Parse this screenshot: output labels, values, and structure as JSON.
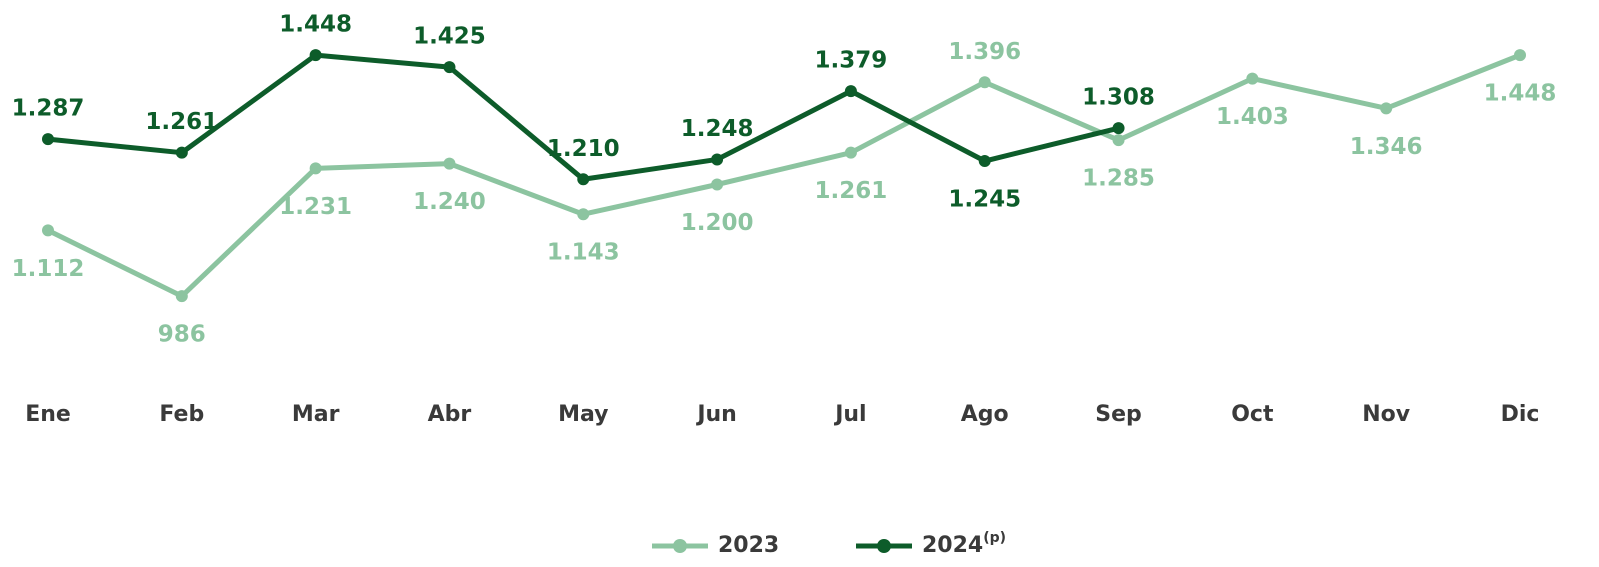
{
  "chart_data": {
    "type": "line",
    "categories": [
      "Ene",
      "Feb",
      "Mar",
      "Abr",
      "May",
      "Jun",
      "Jul",
      "Ago",
      "Sep",
      "Oct",
      "Nov",
      "Dic"
    ],
    "series": [
      {
        "name": "2023",
        "color": "#8cc4a0",
        "values": [
          1112,
          986,
          1231,
          1240,
          1143,
          1200,
          1261,
          1396,
          1285,
          1403,
          1346,
          1448
        ],
        "value_labels": [
          "1.112",
          "986",
          "1.231",
          "1.240",
          "1.143",
          "1.200",
          "1.261",
          "1.396",
          "1.285",
          "1.403",
          "1.346",
          "1.448"
        ]
      },
      {
        "name": "2024",
        "name_superscript": "(p)",
        "color": "#0d5c2a",
        "values": [
          1287,
          1261,
          1448,
          1425,
          1210,
          1248,
          1379,
          1245,
          1308,
          null,
          null,
          null
        ],
        "value_labels": [
          "1.287",
          "1.261",
          "1.448",
          "1.425",
          "1.210",
          "1.248",
          "1.379",
          "1.245",
          "1.308",
          null,
          null,
          null
        ]
      }
    ],
    "ylim": [
      900,
      1500
    ]
  }
}
